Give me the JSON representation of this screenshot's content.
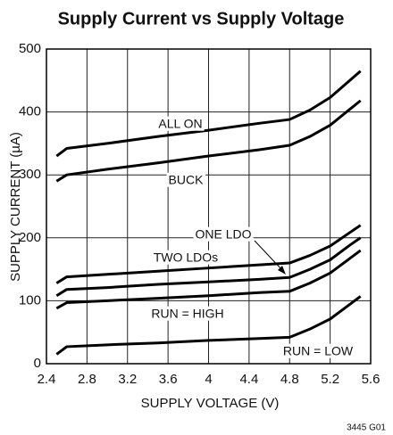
{
  "chart_data": {
    "type": "line",
    "title": "Supply Current vs Supply Voltage",
    "x_label": "SUPPLY VOLTAGE (V)",
    "y_label": "SUPPLY CURRENT (µA)",
    "x": [
      2.5,
      2.6,
      3,
      3.5,
      4,
      4.5,
      4.8,
      5,
      5.2,
      5.4,
      5.5
    ],
    "series": [
      {
        "name": "ALL ON",
        "color": "#000000",
        "values": [
          330,
          342,
          350,
          361,
          371,
          382,
          388,
          403,
          423,
          451,
          465
        ]
      },
      {
        "name": "BUCK",
        "color": "#000000",
        "values": [
          290,
          300,
          309,
          319,
          330,
          340,
          347,
          361,
          379,
          405,
          418
        ]
      },
      {
        "name": "ONE LDO",
        "color": "#000000",
        "values": [
          128,
          138,
          142,
          147,
          152,
          157,
          160,
          172,
          187,
          209,
          220
        ]
      },
      {
        "name": "TWO LDOs",
        "color": "#000000",
        "values": [
          108,
          118,
          121,
          126,
          130,
          134,
          137,
          150,
          165,
          189,
          200
        ]
      },
      {
        "name": "RUN = HIGH",
        "color": "#000000",
        "values": [
          88,
          97,
          100,
          104,
          108,
          113,
          115,
          128,
          144,
          168,
          180
        ]
      },
      {
        "name": "RUN = LOW",
        "color": "#000000",
        "values": [
          15,
          27,
          30,
          33,
          37,
          40,
          42,
          55,
          71,
          95,
          107
        ]
      }
    ],
    "xlim": [
      2.4,
      5.6
    ],
    "ylim": [
      0,
      500
    ],
    "xticks": [
      2.4,
      2.8,
      3.2,
      3.6,
      4,
      4.4,
      4.8,
      5.2,
      5.6
    ],
    "yticks": [
      0,
      100,
      200,
      300,
      400,
      500
    ],
    "grid": true,
    "footnote": "3445 G01"
  }
}
